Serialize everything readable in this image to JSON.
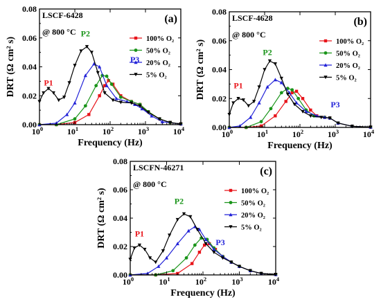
{
  "chart_data": [
    {
      "type": "line",
      "panel": "(a)",
      "sample": "LSCF-6428",
      "condition": "@ 800 °C",
      "xlabel": "Frequency (Hz)",
      "ylabel": "DRT (Ω cm² s)",
      "xscale": "log",
      "xlim": [
        1,
        10000
      ],
      "ylim": [
        0,
        0.08
      ],
      "yticks": [
        "0.00",
        "0.02",
        "0.04",
        "0.06",
        "0.08"
      ],
      "xticks": [
        "10^0",
        "10^1",
        "10^2",
        "10^3",
        "10^4"
      ],
      "legend_position": "top-right",
      "peaks": [
        {
          "label": "P1",
          "x": 1.8,
          "y": 0.027,
          "color": "#e8141a"
        },
        {
          "label": "P2",
          "x": 20,
          "y": 0.061,
          "color": "#199419"
        },
        {
          "label": "P3",
          "x": 500,
          "y": 0.043,
          "color": "#2222d8"
        }
      ],
      "series": [
        {
          "name": "100% O₂",
          "color": "#e8141a",
          "marker": "square",
          "x": [
            1,
            3,
            10,
            25,
            50,
            70,
            90,
            120,
            200,
            400,
            700,
            1200,
            2500,
            5000,
            10000
          ],
          "y": [
            0.0,
            0.0,
            0.0015,
            0.007,
            0.02,
            0.027,
            0.0305,
            0.028,
            0.02,
            0.016,
            0.014,
            0.009,
            0.004,
            0.0015,
            0.0005
          ]
        },
        {
          "name": "50% O₂",
          "color": "#199419",
          "marker": "circle",
          "x": [
            1,
            3,
            10,
            20,
            40,
            60,
            80,
            110,
            200,
            400,
            700,
            1200,
            2500,
            5000,
            10000
          ],
          "y": [
            0.0,
            0.0,
            0.004,
            0.013,
            0.027,
            0.034,
            0.0335,
            0.028,
            0.019,
            0.016,
            0.014,
            0.009,
            0.004,
            0.0015,
            0.0005
          ]
        },
        {
          "name": "20% O₂",
          "color": "#2222d8",
          "marker": "triangle",
          "x": [
            1,
            3,
            6,
            10,
            20,
            35,
            50,
            80,
            150,
            300,
            500,
            800,
            1500,
            3000,
            10000
          ],
          "y": [
            0.0,
            0.001,
            0.007,
            0.015,
            0.034,
            0.042,
            0.04,
            0.027,
            0.018,
            0.016,
            0.014,
            0.011,
            0.006,
            0.002,
            0.0005
          ]
        },
        {
          "name": "5% O₂",
          "color": "#000000",
          "marker": "triangle-down",
          "x": [
            1,
            1.3,
            1.8,
            2.5,
            3.5,
            5,
            7,
            10,
            15,
            22,
            30,
            45,
            70,
            120,
            200,
            400,
            700,
            1200,
            2500,
            5000,
            10000
          ],
          "y": [
            0.016,
            0.022,
            0.025,
            0.022,
            0.017,
            0.019,
            0.029,
            0.041,
            0.051,
            0.054,
            0.05,
            0.036,
            0.022,
            0.017,
            0.0155,
            0.015,
            0.013,
            0.0085,
            0.004,
            0.0015,
            0.0005
          ]
        }
      ]
    },
    {
      "type": "line",
      "panel": "(b)",
      "sample": "LSCF-4628",
      "condition": "@ 800 °C",
      "xlabel": "Frequency (Hz)",
      "ylabel": "DRT (Ω cm² s)",
      "xscale": "log",
      "xlim": [
        1,
        10000
      ],
      "ylim": [
        0,
        0.08
      ],
      "yticks": [
        "0.00",
        "0.02",
        "0.04",
        "0.06",
        "0.08"
      ],
      "xticks": [
        "10^0",
        "10^1",
        "10^2",
        "10^3",
        "10^4"
      ],
      "legend_position": "top-right",
      "peaks": [
        {
          "label": "P1",
          "x": 1.8,
          "y": 0.027,
          "color": "#e8141a"
        },
        {
          "label": "P2",
          "x": 12,
          "y": 0.05,
          "color": "#199419"
        },
        {
          "label": "P3",
          "x": 1000,
          "y": 0.014,
          "color": "#2222d8"
        }
      ],
      "series": [
        {
          "name": "100% O₂",
          "color": "#e8141a",
          "marker": "square",
          "x": [
            1,
            3,
            8,
            20,
            40,
            60,
            80,
            120,
            200,
            300,
            500,
            700,
            1200,
            3000,
            10000
          ],
          "y": [
            0.0,
            0.0,
            0.001,
            0.008,
            0.018,
            0.024,
            0.025,
            0.02,
            0.012,
            0.008,
            0.007,
            0.0065,
            0.003,
            0.0008,
            0.0002
          ]
        },
        {
          "name": "50% O₂",
          "color": "#199419",
          "marker": "circle",
          "x": [
            1,
            3,
            8,
            15,
            30,
            45,
            60,
            90,
            150,
            250,
            500,
            700,
            1200,
            3000,
            10000
          ],
          "y": [
            0.0,
            0.0,
            0.004,
            0.013,
            0.024,
            0.027,
            0.026,
            0.02,
            0.012,
            0.008,
            0.007,
            0.0065,
            0.003,
            0.0008,
            0.0002
          ]
        },
        {
          "name": "20% O₂",
          "color": "#2222d8",
          "marker": "triangle",
          "x": [
            1,
            2,
            4,
            7,
            12,
            20,
            30,
            50,
            80,
            150,
            300,
            500,
            700,
            1200,
            3000,
            10000
          ],
          "y": [
            0.0,
            0.001,
            0.007,
            0.017,
            0.028,
            0.033,
            0.031,
            0.024,
            0.017,
            0.011,
            0.008,
            0.007,
            0.0065,
            0.003,
            0.0008,
            0.0002
          ]
        },
        {
          "name": "5% O₂",
          "color": "#000000",
          "marker": "triangle-down",
          "x": [
            1,
            1.3,
            1.8,
            2.5,
            3.5,
            5,
            7,
            10,
            14,
            20,
            30,
            45,
            70,
            120,
            200,
            400,
            700,
            1200,
            3000,
            10000
          ],
          "y": [
            0.009,
            0.017,
            0.02,
            0.019,
            0.015,
            0.018,
            0.028,
            0.04,
            0.046,
            0.044,
            0.034,
            0.023,
            0.016,
            0.011,
            0.008,
            0.007,
            0.0065,
            0.003,
            0.0008,
            0.0002
          ]
        }
      ]
    },
    {
      "type": "line",
      "panel": "(c)",
      "sample": "LSCFN-46271",
      "condition": "@ 800 °C",
      "xlabel": "Frequency (Hz)",
      "ylabel": "DRT (Ω cm² s)",
      "xscale": "log",
      "xlim": [
        1,
        10000
      ],
      "ylim": [
        0,
        0.08
      ],
      "yticks": [
        "0.00",
        "0.02",
        "0.04",
        "0.06",
        "0.08"
      ],
      "xticks": [
        "10^0",
        "10^1",
        "10^2",
        "10^3",
        "10^4"
      ],
      "legend_position": "top-right",
      "peaks": [
        {
          "label": "P1",
          "x": 1.8,
          "y": 0.027,
          "color": "#e8141a"
        },
        {
          "label": "P2",
          "x": 22,
          "y": 0.05,
          "color": "#199419"
        },
        {
          "label": "P3",
          "x": 300,
          "y": 0.021,
          "color": "#2222d8"
        }
      ],
      "series": [
        {
          "name": "100% O₂",
          "color": "#e8141a",
          "marker": "square",
          "x": [
            1,
            5,
            20,
            50,
            80,
            110,
            150,
            220,
            350,
            600,
            1000,
            2000,
            4000,
            10000
          ],
          "y": [
            0.0,
            0.0,
            0.001,
            0.008,
            0.016,
            0.021,
            0.022,
            0.018,
            0.013,
            0.009,
            0.006,
            0.003,
            0.001,
            0.0003
          ]
        },
        {
          "name": "50% O₂",
          "color": "#199419",
          "marker": "circle",
          "x": [
            1,
            5,
            15,
            35,
            60,
            90,
            130,
            200,
            350,
            600,
            1000,
            2000,
            4000,
            10000
          ],
          "y": [
            0.0,
            0.0,
            0.003,
            0.012,
            0.021,
            0.026,
            0.025,
            0.019,
            0.013,
            0.009,
            0.006,
            0.003,
            0.001,
            0.0003
          ]
        },
        {
          "name": "20% O₂",
          "color": "#2222d8",
          "marker": "triangle",
          "x": [
            1,
            3,
            6,
            10,
            20,
            40,
            60,
            80,
            120,
            200,
            350,
            600,
            1000,
            2000,
            4000,
            10000
          ],
          "y": [
            0.0,
            0.001,
            0.006,
            0.012,
            0.022,
            0.031,
            0.034,
            0.032,
            0.025,
            0.018,
            0.013,
            0.009,
            0.006,
            0.003,
            0.001,
            0.0003
          ]
        },
        {
          "name": "5% O₂",
          "color": "#000000",
          "marker": "triangle-down",
          "x": [
            1,
            1.3,
            1.8,
            2.5,
            3.5,
            5,
            8,
            12,
            20,
            30,
            45,
            70,
            120,
            200,
            350,
            600,
            1000,
            2000,
            4000,
            10000
          ],
          "y": [
            0.011,
            0.019,
            0.021,
            0.018,
            0.012,
            0.009,
            0.017,
            0.028,
            0.039,
            0.043,
            0.041,
            0.032,
            0.022,
            0.016,
            0.012,
            0.009,
            0.006,
            0.003,
            0.001,
            0.0003
          ]
        }
      ]
    }
  ]
}
